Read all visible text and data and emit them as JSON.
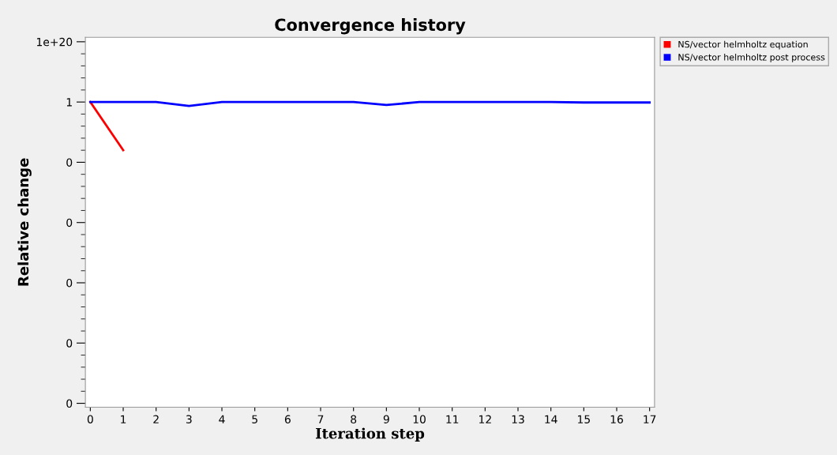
{
  "chart_data": {
    "type": "line",
    "title": "Convergence history",
    "xlabel": "Iteration step",
    "ylabel": "Relative change",
    "x": [
      0,
      1,
      2,
      3,
      4,
      5,
      6,
      7,
      8,
      9,
      10,
      11,
      12,
      13,
      14,
      15,
      16,
      17
    ],
    "series": [
      {
        "name": "NS/vector helmholtz equation",
        "color": "#ff0000",
        "x": [
          0,
          1
        ],
        "values": [
          1,
          1e-16
        ]
      },
      {
        "name": "NS/vector helmholtz post process",
        "color": "#0000ff",
        "values": [
          1,
          1,
          1,
          0.05,
          1,
          1,
          1,
          1,
          1,
          0.1,
          1,
          1,
          1,
          1,
          1,
          0.7,
          0.7,
          0.7
        ]
      }
    ],
    "log": "y",
    "xlim": [
      -0.15,
      17.15
    ],
    "xticks": [
      0,
      1,
      2,
      3,
      4,
      5,
      6,
      7,
      8,
      9,
      10,
      11,
      12,
      13,
      14,
      15,
      16,
      17
    ],
    "ylim": [
      5e-102,
      3e+21
    ],
    "yticks": [
      {
        "value": 1e+20,
        "label": "1e+20"
      },
      {
        "value": 1,
        "label": "1"
      },
      {
        "value": 1e-20,
        "label": "0"
      },
      {
        "value": 1e-40,
        "label": "0"
      },
      {
        "value": 1e-60,
        "label": "0"
      },
      {
        "value": 1e-80,
        "label": "0"
      },
      {
        "value": 1e-100,
        "label": "0"
      },
      {
        "value": 1e+16,
        "label": null
      },
      {
        "value": 1000000000000.0,
        "label": null
      },
      {
        "value": 100000000.0,
        "label": null
      },
      {
        "value": 10000.0,
        "label": null
      },
      {
        "value": 0.0001,
        "label": null
      },
      {
        "value": 1e-08,
        "label": null
      },
      {
        "value": 1e-12,
        "label": null
      },
      {
        "value": 1e-16,
        "label": null
      },
      {
        "value": 1e-24,
        "label": null
      },
      {
        "value": 1e-28,
        "label": null
      },
      {
        "value": 1e-32,
        "label": null
      },
      {
        "value": 1e-36,
        "label": null
      },
      {
        "value": 1e-44,
        "label": null
      },
      {
        "value": 1e-48,
        "label": null
      },
      {
        "value": 1e-52,
        "label": null
      },
      {
        "value": 1e-56,
        "label": null
      },
      {
        "value": 1e-64,
        "label": null
      },
      {
        "value": 1e-68,
        "label": null
      },
      {
        "value": 1e-72,
        "label": null
      },
      {
        "value": 1e-76,
        "label": null
      },
      {
        "value": 1e-84,
        "label": null
      },
      {
        "value": 1e-88,
        "label": null
      },
      {
        "value": 1e-92,
        "label": null
      },
      {
        "value": 1e-96,
        "label": null
      }
    ],
    "grid": false,
    "legend": "top right",
    "marker": "none",
    "line_style": "solid"
  }
}
